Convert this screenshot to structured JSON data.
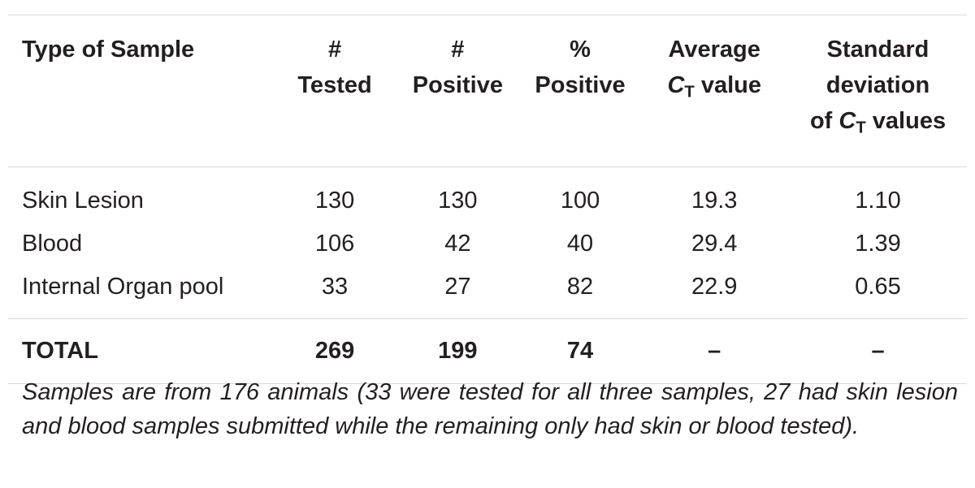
{
  "table": {
    "headers": {
      "type_of_sample": "Type of Sample",
      "tested_l1": "#",
      "tested_l2": "Tested",
      "positive_l1": "#",
      "positive_l2": "Positive",
      "pct_positive_l1": "%",
      "pct_positive_l2": "Positive",
      "avg_ct_l1": "Average",
      "avg_ct_c": "C",
      "avg_ct_sub": "T",
      "avg_ct_rest": " value",
      "sd_l1": "Standard",
      "sd_l2": "deviation",
      "sd_of": "of ",
      "sd_c": "C",
      "sd_sub": "T",
      "sd_rest": " values"
    },
    "rows": [
      {
        "type": "Skin Lesion",
        "tested": "130",
        "positive": "130",
        "pct_positive": "100",
        "avg_ct": "19.3",
        "sd_ct": "1.10"
      },
      {
        "type": "Blood",
        "tested": "106",
        "positive": "42",
        "pct_positive": "40",
        "avg_ct": "29.4",
        "sd_ct": "1.39"
      },
      {
        "type": "Internal Organ pool",
        "tested": "33",
        "positive": "27",
        "pct_positive": "82",
        "avg_ct": "22.9",
        "sd_ct": "0.65"
      }
    ],
    "total": {
      "type": "TOTAL",
      "tested": "269",
      "positive": "199",
      "pct_positive": "74",
      "avg_ct": "–",
      "sd_ct": "–"
    }
  },
  "footnote": "Samples are from 176 animals (33 were tested for all three samples, 27 had skin lesion and blood samples submitted while the remaining only had skin or blood tested)."
}
